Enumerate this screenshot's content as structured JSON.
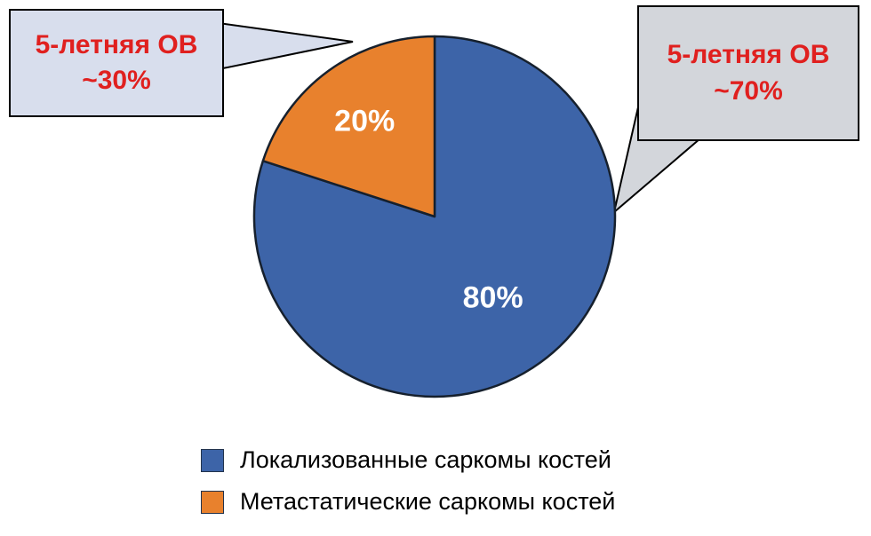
{
  "chart_data": {
    "type": "pie",
    "title": "",
    "legend_position": "bottom",
    "direction": "clockwise",
    "start_angle_deg": 0,
    "stroke_color": "#16202d",
    "slices": [
      {
        "label": "Локализованные саркомы костей",
        "value": 80,
        "display": "80%",
        "color": "#3d64a8"
      },
      {
        "label": "Метастатические саркомы костей",
        "value": 20,
        "display": "20%",
        "color": "#e8812d"
      }
    ]
  },
  "callouts": {
    "left": {
      "line1": "5-летняя ОВ",
      "line2": "~30%",
      "bg": "#d8deed",
      "text_color": "#e0201f"
    },
    "right": {
      "line1": "5-летняя ОВ",
      "line2": "~70%",
      "bg": "#d3d6db",
      "text_color": "#e0201f"
    }
  }
}
